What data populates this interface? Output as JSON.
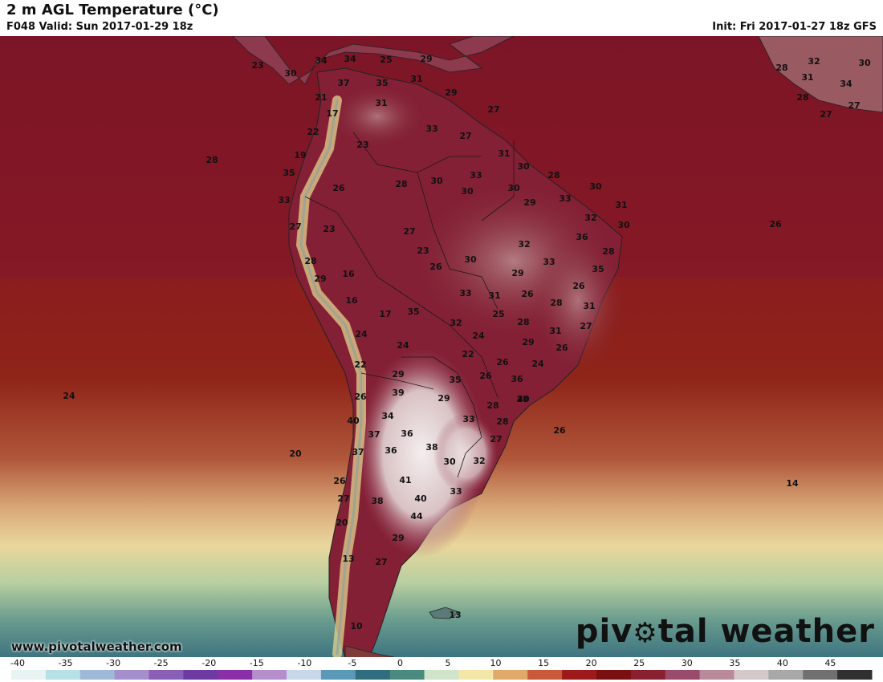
{
  "header": {
    "title": "2 m AGL Temperature (°C)",
    "valid": "F048 Valid: Sun 2017-01-29 18z",
    "init": "Init: Fri 2017-01-27 18z GFS"
  },
  "footer": {
    "website": "www.pivotalweather.com",
    "brand_before": "piv",
    "brand_after": "tal weather"
  },
  "legend": {
    "ticks": [
      "-40",
      "-35",
      "-30",
      "-25",
      "-20",
      "-15",
      "-10",
      "-5",
      "0",
      "5",
      "10",
      "15",
      "20",
      "25",
      "30",
      "35",
      "40",
      "45"
    ],
    "colors": [
      "#e8f4f4",
      "#b6e2e6",
      "#9fb9d9",
      "#a48fcc",
      "#8a5fb8",
      "#6c3aa0",
      "#8b2fa8",
      "#b48fcc",
      "#c8d8e8",
      "#5a9ab8",
      "#2e6e7e",
      "#4a8a80",
      "#cfe4c8",
      "#f3e7a8",
      "#e0a86a",
      "#c85a3a",
      "#9e1a1a",
      "#7a1010",
      "#882030",
      "#9a4a6a",
      "#b88a9a",
      "#d4c8c8",
      "#a8a8a8",
      "#707070",
      "#303030"
    ],
    "min": -40,
    "max": 50
  },
  "temperature_labels": [
    {
      "v": "23"
    },
    {
      "v": "30"
    },
    {
      "v": "34"
    },
    {
      "v": "34"
    },
    {
      "v": "25"
    },
    {
      "v": "29"
    },
    {
      "v": "37"
    },
    {
      "v": "35"
    },
    {
      "v": "31"
    },
    {
      "v": "21"
    },
    {
      "v": "17"
    },
    {
      "v": "31"
    },
    {
      "v": "29"
    },
    {
      "v": "27"
    },
    {
      "v": "22"
    },
    {
      "v": "33"
    },
    {
      "v": "27"
    },
    {
      "v": "23"
    },
    {
      "v": "19"
    },
    {
      "v": "31"
    },
    {
      "v": "28"
    },
    {
      "v": "30"
    },
    {
      "v": "35"
    },
    {
      "v": "33"
    },
    {
      "v": "28"
    },
    {
      "v": "26"
    },
    {
      "v": "28"
    },
    {
      "v": "30"
    },
    {
      "v": "30"
    },
    {
      "v": "30"
    },
    {
      "v": "33"
    },
    {
      "v": "30"
    },
    {
      "v": "33"
    },
    {
      "v": "29"
    },
    {
      "v": "31"
    },
    {
      "v": "32"
    },
    {
      "v": "27"
    },
    {
      "v": "23"
    },
    {
      "v": "27"
    },
    {
      "v": "30"
    },
    {
      "v": "26"
    },
    {
      "v": "23"
    },
    {
      "v": "32"
    },
    {
      "v": "36"
    },
    {
      "v": "28"
    },
    {
      "v": "30"
    },
    {
      "v": "33"
    },
    {
      "v": "26"
    },
    {
      "v": "28"
    },
    {
      "v": "16"
    },
    {
      "v": "29"
    },
    {
      "v": "29"
    },
    {
      "v": "35"
    },
    {
      "v": "33"
    },
    {
      "v": "31"
    },
    {
      "v": "26"
    },
    {
      "v": "26"
    },
    {
      "v": "16"
    },
    {
      "v": "17"
    },
    {
      "v": "35"
    },
    {
      "v": "28"
    },
    {
      "v": "31"
    },
    {
      "v": "32"
    },
    {
      "v": "25"
    },
    {
      "v": "28"
    },
    {
      "v": "27"
    },
    {
      "v": "31"
    },
    {
      "v": "24"
    },
    {
      "v": "24"
    },
    {
      "v": "29"
    },
    {
      "v": "24"
    },
    {
      "v": "22"
    },
    {
      "v": "26"
    },
    {
      "v": "26"
    },
    {
      "v": "22"
    },
    {
      "v": "29"
    },
    {
      "v": "35"
    },
    {
      "v": "26"
    },
    {
      "v": "24"
    },
    {
      "v": "36"
    },
    {
      "v": "39"
    },
    {
      "v": "29"
    },
    {
      "v": "26"
    },
    {
      "v": "28"
    },
    {
      "v": "40"
    },
    {
      "v": "34"
    },
    {
      "v": "33"
    },
    {
      "v": "28"
    },
    {
      "v": "40"
    },
    {
      "v": "37"
    },
    {
      "v": "36"
    },
    {
      "v": "27"
    },
    {
      "v": "37"
    },
    {
      "v": "36"
    },
    {
      "v": "38"
    },
    {
      "v": "30"
    },
    {
      "v": "32"
    },
    {
      "v": "26"
    },
    {
      "v": "41"
    },
    {
      "v": "33"
    },
    {
      "v": "27"
    },
    {
      "v": "38"
    },
    {
      "v": "40"
    },
    {
      "v": "44"
    },
    {
      "v": "20"
    },
    {
      "v": "29"
    },
    {
      "v": "13"
    },
    {
      "v": "27"
    },
    {
      "v": "10"
    },
    {
      "v": "13"
    },
    {
      "v": "28"
    },
    {
      "v": "26"
    },
    {
      "v": "24"
    },
    {
      "v": "20"
    },
    {
      "v": "14"
    },
    {
      "v": "32"
    },
    {
      "v": "30"
    },
    {
      "v": "28"
    },
    {
      "v": "31"
    },
    {
      "v": "34"
    },
    {
      "v": "28"
    },
    {
      "v": "27"
    },
    {
      "v": "27"
    }
  ]
}
